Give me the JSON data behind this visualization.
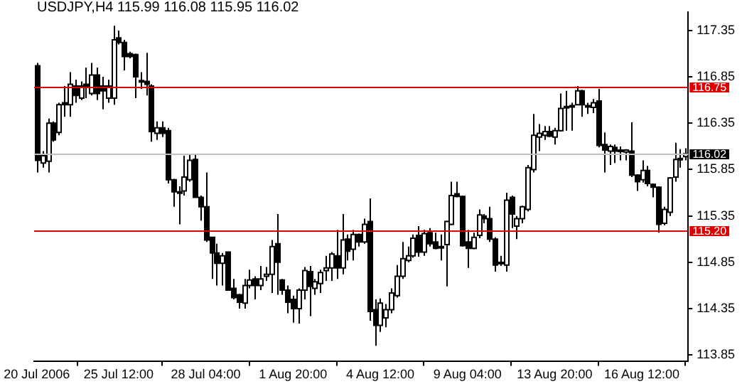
{
  "chart_data": {
    "type": "candlestick",
    "title": "USDJPY,H4  115.99 116.08 115.95 116.02",
    "color": "#000000",
    "colors": [
      "#000000",
      "#ffffff",
      "#ffffff",
      "#000000",
      "#ffffff",
      "#000000",
      "#ffffff",
      "#000000",
      "#ffffff",
      "#000000",
      "#ffffff",
      "#000000",
      "#000000",
      "#ffffff",
      "#ffffff",
      "#000000",
      "#000000",
      "#000000",
      "#000000",
      "#000000",
      "#000000",
      "#000000",
      "#ffffff",
      "#000000",
      "#000000",
      "#000000",
      "#000000",
      "#ffffff",
      "#ffffff",
      "#000000",
      "#000000",
      "#000000",
      "#000000",
      "#000000",
      "#ffffff",
      "#000000",
      "#000000",
      "#000000",
      "#ffffff",
      "#ffffff",
      "#000000",
      "#ffffff",
      "#ffffff",
      "#ffffff",
      "#000000",
      "#000000",
      "#000000",
      "#000000",
      "#ffffff",
      "#ffffff",
      "#000000",
      "#ffffff",
      "#ffffff",
      "#ffffff",
      "#ffffff",
      "#000000",
      "#ffffff",
      "#000000",
      "#ffffff",
      "#000000",
      "#ffffff",
      "#000000",
      "#000000",
      "#ffffff",
      "#ffffff",
      "#ffffff",
      "#ffffff",
      "#ffffff",
      "#ffffff",
      "#ffffff",
      "#000000",
      "#ffffff",
      "#000000",
      "#000000",
      "#ffffff",
      "#ffffff",
      "#ffffff",
      "#000000",
      "#000000",
      "#000000",
      "#ffffff",
      "#ffffff",
      "#000000",
      "#000000",
      "#000000",
      "#ffffff",
      "#ffffff",
      "#000000",
      "#ffffff",
      "#ffffff",
      "#ffffff",
      "#ffffff",
      "#ffffff",
      "#ffffff",
      "#000000",
      "#ffffff",
      "#ffffff",
      "#ffffff",
      "#ffffff",
      "#ffffff",
      "#000000",
      "#ffffff",
      "#ffffff",
      "#000000",
      "#000000",
      "#ffffff",
      "#000000",
      "#ffffff",
      "#ffffff",
      "#000000",
      "#000000",
      "#ffffff",
      "#000000",
      "#000000",
      "#000000",
      "#ffffff",
      "#ffffff",
      "#ffffff",
      "#ffffff",
      "#ffffff"
    ],
    "categories": [
      "20 Jul 2006",
      null,
      null,
      null,
      null,
      null,
      null,
      null,
      null,
      null,
      null,
      null,
      null,
      null,
      null,
      "25 Jul 12:00",
      null,
      null,
      null,
      null,
      null,
      null,
      null,
      null,
      null,
      null,
      null,
      null,
      null,
      null,
      null,
      "28 Jul 04:00",
      null,
      null,
      null,
      null,
      null,
      null,
      null,
      null,
      null,
      null,
      null,
      null,
      null,
      null,
      null,
      "1 Aug 20:00",
      null,
      null,
      null,
      null,
      null,
      null,
      null,
      null,
      null,
      null,
      null,
      null,
      null,
      null,
      null,
      "4 Aug 12:00",
      null,
      null,
      null,
      null,
      null,
      null,
      null,
      null,
      null,
      null,
      null,
      null,
      null,
      null,
      null,
      "9 Aug 04:00",
      null,
      null,
      null,
      null,
      null,
      null,
      null,
      null,
      null,
      null,
      null,
      null,
      null,
      null,
      null,
      "13 Aug 20:00",
      null,
      null,
      null,
      null,
      null,
      null,
      null,
      null,
      null,
      null,
      null,
      null,
      null,
      null,
      null,
      "16 Aug 12:00",
      null,
      null,
      null,
      null,
      null,
      null,
      null,
      null
    ],
    "ohlc": [
      [
        116.97,
        117.0,
        115.82,
        115.95
      ],
      [
        115.92,
        116.05,
        115.87,
        116.0
      ],
      [
        115.94,
        116.4,
        115.82,
        116.35
      ],
      [
        116.35,
        116.37,
        116.15,
        116.17
      ],
      [
        116.25,
        116.57,
        116.22,
        116.55
      ],
      [
        116.57,
        116.75,
        116.42,
        116.55
      ],
      [
        116.55,
        116.9,
        116.42,
        116.77
      ],
      [
        116.75,
        116.82,
        116.57,
        116.65
      ],
      [
        116.62,
        116.8,
        116.6,
        116.75
      ],
      [
        116.77,
        116.95,
        116.62,
        116.75
      ],
      [
        116.67,
        117.0,
        116.65,
        116.87
      ],
      [
        116.87,
        116.95,
        116.6,
        116.67
      ],
      [
        116.75,
        116.85,
        116.5,
        116.7
      ],
      [
        116.62,
        116.82,
        116.57,
        116.75
      ],
      [
        116.62,
        117.4,
        116.55,
        117.25
      ],
      [
        117.27,
        117.35,
        117.2,
        117.22
      ],
      [
        117.22,
        117.25,
        116.92,
        117.07
      ],
      [
        117.1,
        117.12,
        117.05,
        117.07
      ],
      [
        117.09,
        117.1,
        116.62,
        116.85
      ],
      [
        116.81,
        116.9,
        116.72,
        116.8
      ],
      [
        116.8,
        117.11,
        116.65,
        116.77
      ],
      [
        116.75,
        116.77,
        116.15,
        116.26
      ],
      [
        116.24,
        116.37,
        116.17,
        116.3
      ],
      [
        116.3,
        116.37,
        116.2,
        116.24
      ],
      [
        116.27,
        116.3,
        115.7,
        115.74
      ],
      [
        115.74,
        115.75,
        115.45,
        115.61
      ],
      [
        115.61,
        115.67,
        115.26,
        115.6
      ],
      [
        115.62,
        116.0,
        115.57,
        115.77
      ],
      [
        115.74,
        116.02,
        115.72,
        115.95
      ],
      [
        115.96,
        116.02,
        115.55,
        115.55
      ],
      [
        115.55,
        115.57,
        115.3,
        115.45
      ],
      [
        115.45,
        115.82,
        115.07,
        115.09
      ],
      [
        115.12,
        115.12,
        114.67,
        114.95
      ],
      [
        114.95,
        115.05,
        114.6,
        114.84
      ],
      [
        114.84,
        114.95,
        114.6,
        114.92
      ],
      [
        114.96,
        114.96,
        114.55,
        114.55
      ],
      [
        114.57,
        114.67,
        114.45,
        114.47
      ],
      [
        114.5,
        114.51,
        114.35,
        114.42
      ],
      [
        114.41,
        114.67,
        114.35,
        114.6
      ],
      [
        114.6,
        114.77,
        114.57,
        114.66
      ],
      [
        114.67,
        114.7,
        114.45,
        114.6
      ],
      [
        114.6,
        114.81,
        114.55,
        114.67
      ],
      [
        114.7,
        114.8,
        114.65,
        114.72
      ],
      [
        114.72,
        115.09,
        114.52,
        115.02
      ],
      [
        115.05,
        115.37,
        114.5,
        114.85
      ],
      [
        114.66,
        114.67,
        114.5,
        114.55
      ],
      [
        114.55,
        114.6,
        114.3,
        114.42
      ],
      [
        114.45,
        114.49,
        114.2,
        114.35
      ],
      [
        114.35,
        114.57,
        114.19,
        114.55
      ],
      [
        114.55,
        114.8,
        114.45,
        114.76
      ],
      [
        114.75,
        114.81,
        114.27,
        114.59
      ],
      [
        114.57,
        114.67,
        114.5,
        114.64
      ],
      [
        114.62,
        114.77,
        114.52,
        114.74
      ],
      [
        114.76,
        114.92,
        114.65,
        114.79
      ],
      [
        114.79,
        114.96,
        114.65,
        114.94
      ],
      [
        114.92,
        115.2,
        114.67,
        114.79
      ],
      [
        114.79,
        115.37,
        114.72,
        115.09
      ],
      [
        115.1,
        115.15,
        114.87,
        114.97
      ],
      [
        114.99,
        115.2,
        114.87,
        115.15
      ],
      [
        115.15,
        115.16,
        115.02,
        115.07
      ],
      [
        115.07,
        115.32,
        115.05,
        115.26
      ],
      [
        115.29,
        115.54,
        114.22,
        114.32
      ],
      [
        114.34,
        114.45,
        113.95,
        114.17
      ],
      [
        114.17,
        114.46,
        114.1,
        114.41
      ],
      [
        114.25,
        114.4,
        114.15,
        114.34
      ],
      [
        114.34,
        114.57,
        114.3,
        114.52
      ],
      [
        114.49,
        114.82,
        114.47,
        114.7
      ],
      [
        114.7,
        115.07,
        114.67,
        114.89
      ],
      [
        114.87,
        115.02,
        114.85,
        114.92
      ],
      [
        114.92,
        115.15,
        114.9,
        115.11
      ],
      [
        115.14,
        115.24,
        114.91,
        114.96
      ],
      [
        114.96,
        115.2,
        114.92,
        115.16
      ],
      [
        115.17,
        115.22,
        115.02,
        115.05
      ],
      [
        115.07,
        115.17,
        114.99,
        115.0
      ],
      [
        115.02,
        115.15,
        114.87,
        115.02
      ],
      [
        115.04,
        115.3,
        114.59,
        115.29
      ],
      [
        115.26,
        115.72,
        115.25,
        115.57
      ],
      [
        115.59,
        115.72,
        115.55,
        115.56
      ],
      [
        115.56,
        115.57,
        115.02,
        115.03
      ],
      [
        115.07,
        115.2,
        114.79,
        115.0
      ],
      [
        115.0,
        115.17,
        114.99,
        115.12
      ],
      [
        115.14,
        115.42,
        115.11,
        115.36
      ],
      [
        115.35,
        115.37,
        115.27,
        115.32
      ],
      [
        115.32,
        115.45,
        115.07,
        115.1
      ],
      [
        115.1,
        115.12,
        114.75,
        114.82
      ],
      [
        114.85,
        114.92,
        114.81,
        114.85
      ],
      [
        114.82,
        115.6,
        114.75,
        115.52
      ],
      [
        115.55,
        115.57,
        115.22,
        115.37
      ],
      [
        115.24,
        115.35,
        115.1,
        115.32
      ],
      [
        115.32,
        115.46,
        115.27,
        115.45
      ],
      [
        115.42,
        115.9,
        115.4,
        115.87
      ],
      [
        115.85,
        116.45,
        115.82,
        116.22
      ],
      [
        116.2,
        116.34,
        116.05,
        116.24
      ],
      [
        116.22,
        116.32,
        116.17,
        116.26
      ],
      [
        116.26,
        116.32,
        116.2,
        116.21
      ],
      [
        116.2,
        116.3,
        116.12,
        116.27
      ],
      [
        116.27,
        116.67,
        116.26,
        116.51
      ],
      [
        116.52,
        116.7,
        116.27,
        116.53
      ],
      [
        116.54,
        116.57,
        116.27,
        116.54
      ],
      [
        116.55,
        116.75,
        116.55,
        116.7
      ],
      [
        116.7,
        116.71,
        116.42,
        116.55
      ],
      [
        116.54,
        116.57,
        116.45,
        116.54
      ],
      [
        116.52,
        116.61,
        116.46,
        116.57
      ],
      [
        116.59,
        116.72,
        116.09,
        116.11
      ],
      [
        116.12,
        116.25,
        115.82,
        116.06
      ],
      [
        116.05,
        116.12,
        115.9,
        116.1
      ],
      [
        116.09,
        116.12,
        115.92,
        116.05
      ],
      [
        116.06,
        116.1,
        115.95,
        116.06
      ],
      [
        116.04,
        116.07,
        115.95,
        116.06
      ],
      [
        116.05,
        116.36,
        115.77,
        115.79
      ],
      [
        115.79,
        115.8,
        115.62,
        115.72
      ],
      [
        115.74,
        115.95,
        115.71,
        115.84
      ],
      [
        115.84,
        115.89,
        115.67,
        115.7
      ],
      [
        115.69,
        115.7,
        115.55,
        115.66
      ],
      [
        115.66,
        115.67,
        115.17,
        115.26
      ],
      [
        115.27,
        115.45,
        115.25,
        115.42
      ],
      [
        115.39,
        115.77,
        115.35,
        115.76
      ],
      [
        115.77,
        116.14,
        115.72,
        115.96
      ],
      [
        115.97,
        116.07,
        115.87,
        115.97
      ],
      [
        115.99,
        116.08,
        115.95,
        116.02
      ]
    ],
    "ylim": [
      113.78,
      117.55
    ],
    "yticks": [
      113.85,
      114.35,
      114.85,
      115.35,
      115.85,
      116.35,
      116.85,
      117.35
    ],
    "ref_lines": [
      {
        "axis": "y",
        "value": 116.75,
        "label": "116.75",
        "color": "#e00000"
      },
      {
        "axis": "y",
        "value": 115.2,
        "label": "115.20",
        "color": "#e00000"
      },
      {
        "axis": "y",
        "value": 116.02,
        "label": "116.02",
        "color": "#c0c0c0"
      }
    ]
  }
}
